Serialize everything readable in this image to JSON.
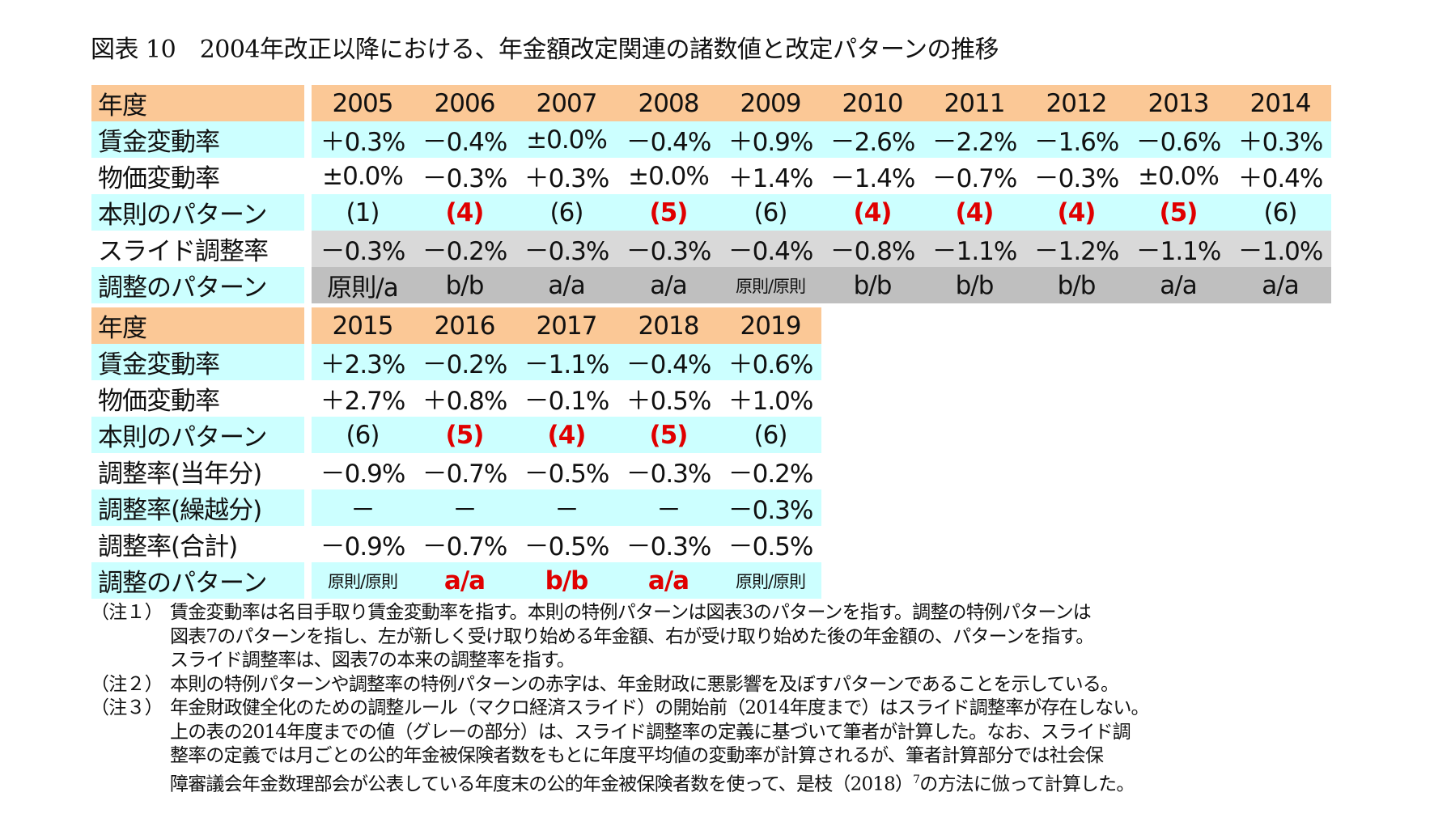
{
  "title": "図表 10　2004年改正以降における、年金額改定関連の諸数値と改定パターンの推移",
  "colors": {
    "header": "#FBC896",
    "cyan": "#CCFFFF",
    "gray_light": "#D9D9D9",
    "gray_dark": "#BFBFBF",
    "adverse": "#E00000"
  },
  "table1": {
    "header_label": "年度",
    "years": [
      "2005",
      "2006",
      "2007",
      "2008",
      "2009",
      "2010",
      "2011",
      "2012",
      "2013",
      "2014"
    ],
    "rows": [
      {
        "label": "賃金変動率",
        "values": [
          "＋0.3%",
          "－0.4%",
          "±0.0%",
          "－0.4%",
          "＋0.9%",
          "－2.6%",
          "－2.2%",
          "－1.6%",
          "－0.6%",
          "＋0.3%"
        ]
      },
      {
        "label": "物価変動率",
        "values": [
          "±0.0%",
          "－0.3%",
          "＋0.3%",
          "±0.0%",
          "＋1.4%",
          "－1.4%",
          "－0.7%",
          "－0.3%",
          "±0.0%",
          "＋0.4%"
        ]
      },
      {
        "label": "本則のパターン",
        "values": [
          "(1)",
          "(4)",
          "(6)",
          "(5)",
          "(6)",
          "(4)",
          "(4)",
          "(4)",
          "(5)",
          "(6)"
        ],
        "red": [
          false,
          true,
          false,
          true,
          false,
          true,
          true,
          true,
          true,
          false
        ]
      },
      {
        "label": "スライド調整率",
        "values": [
          "－0.3%",
          "－0.2%",
          "－0.3%",
          "－0.3%",
          "－0.4%",
          "－0.8%",
          "－1.1%",
          "－1.2%",
          "－1.1%",
          "－1.0%"
        ]
      },
      {
        "label": "調整のパターン",
        "values": [
          "原則/a",
          "b/b",
          "a/a",
          "a/a",
          "原則/原則",
          "b/b",
          "b/b",
          "b/b",
          "a/a",
          "a/a"
        ]
      }
    ]
  },
  "table2": {
    "header_label": "年度",
    "years": [
      "2015",
      "2016",
      "2017",
      "2018",
      "2019"
    ],
    "rows": [
      {
        "label": "賃金変動率",
        "values": [
          "＋2.3%",
          "－0.2%",
          "－1.1%",
          "－0.4%",
          "＋0.6%"
        ]
      },
      {
        "label": "物価変動率",
        "values": [
          "＋2.7%",
          "＋0.8%",
          "－0.1%",
          "＋0.5%",
          "＋1.0%"
        ]
      },
      {
        "label": "本則のパターン",
        "values": [
          "(6)",
          "(5)",
          "(4)",
          "(5)",
          "(6)"
        ],
        "red": [
          false,
          true,
          true,
          true,
          false
        ]
      },
      {
        "label": "調整率(当年分)",
        "values": [
          "－0.9%",
          "－0.7%",
          "－0.5%",
          "－0.3%",
          "－0.2%"
        ]
      },
      {
        "label": "調整率(繰越分)",
        "values": [
          "－",
          "－",
          "－",
          "－",
          "－0.3%"
        ]
      },
      {
        "label": "調整率(合計)",
        "values": [
          "－0.9%",
          "－0.7%",
          "－0.5%",
          "－0.3%",
          "－0.5%"
        ]
      },
      {
        "label": "調整のパターン",
        "values": [
          "原則/原則",
          "a/a",
          "b/b",
          "a/a",
          "原則/原則"
        ],
        "red": [
          false,
          true,
          true,
          true,
          false
        ]
      }
    ]
  },
  "notes": [
    {
      "label": "（注１）",
      "lines": [
        "賃金変動率は名目手取り賃金変動率を指す。本則の特例パターンは図表3のパターンを指す。調整の特例パターンは",
        "図表7のパターンを指し、左が新しく受け取り始める年金額、右が受け取り始めた後の年金額の、パターンを指す。",
        "スライド調整率は、図表7の本来の調整率を指す。"
      ]
    },
    {
      "label": "（注２）",
      "lines": [
        "本則の特例パターンや調整率の特例パターンの赤字は、年金財政に悪影響を及ぼすパターンであることを示している。"
      ]
    },
    {
      "label": "（注３）",
      "lines": [
        "年金財政健全化のための調整ルール（マクロ経済スライド）の開始前（2014年度まで）はスライド調整率が存在しない。",
        "上の表の2014年度までの値（グレーの部分）は、スライド調整率の定義に基づいて筆者が計算した。なお、スライド調",
        "整率の定義では月ごとの公的年金被保険者数をもとに年度平均値の変動率が計算されるが、筆者計算部分では社会保",
        "障審議会年金数理部会が公表している年度末の公的年金被保険者数を使って、是枝（2018）"
      ],
      "footnote_ref": "7",
      "tail": "の方法に倣って計算した。"
    }
  ]
}
